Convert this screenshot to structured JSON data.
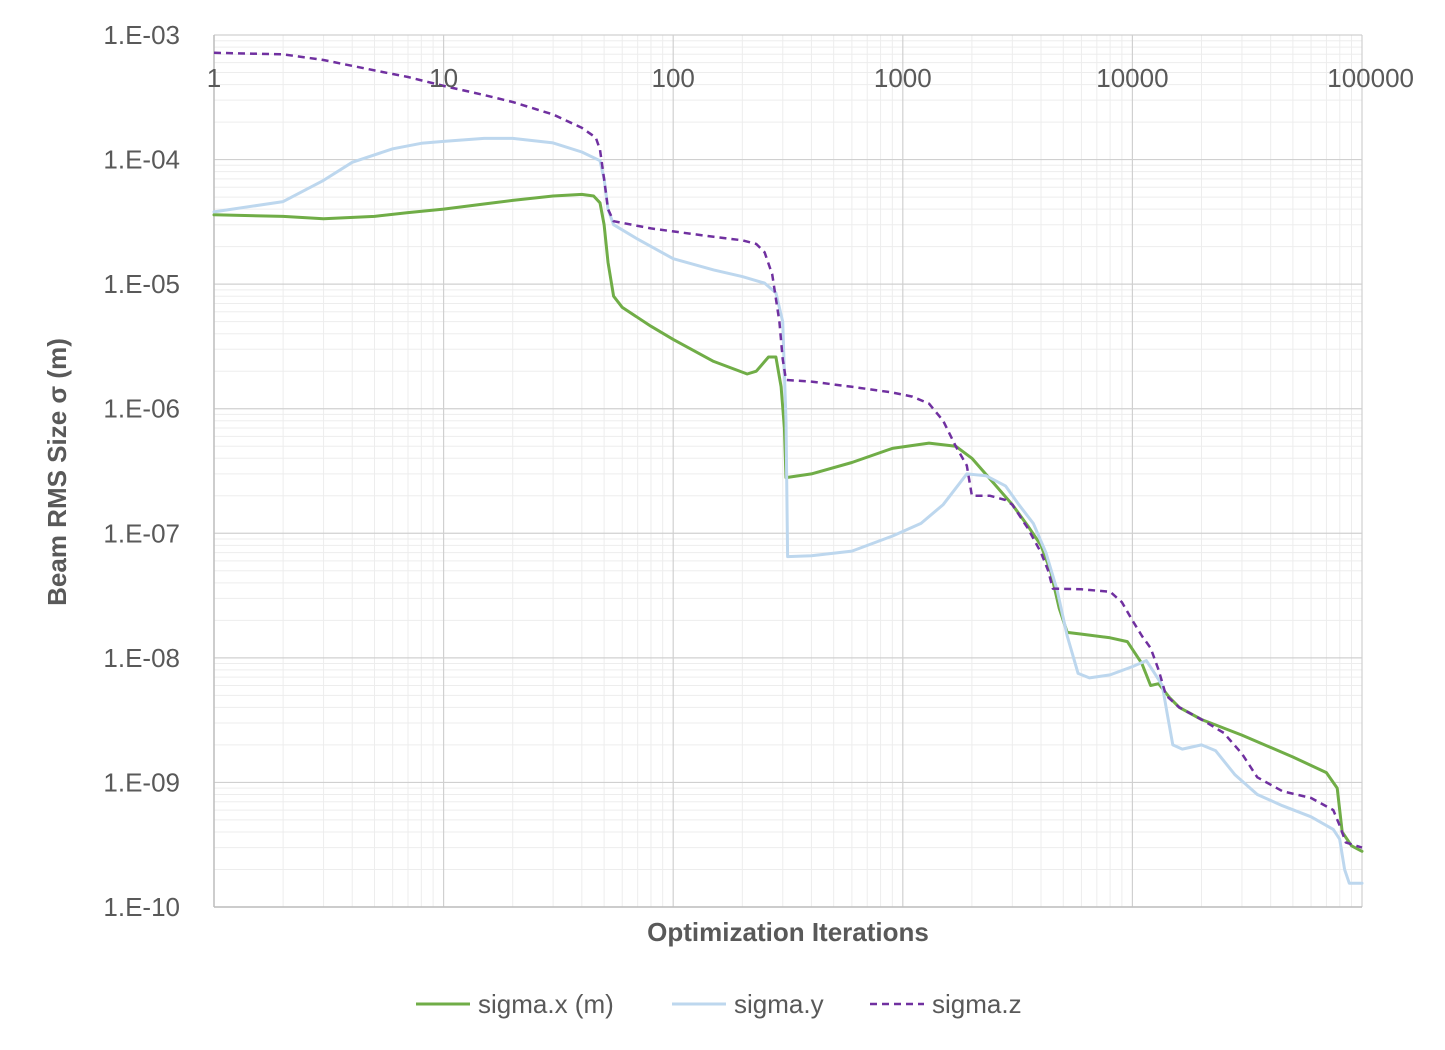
{
  "chart_data": {
    "type": "line",
    "title": "",
    "xlabel": "Optimization Iterations",
    "ylabel": "Beam RMS Size σ (m)",
    "x_scale": "log",
    "y_scale": "log",
    "xlim": [
      1,
      100000
    ],
    "ylim": [
      1e-10,
      0.001
    ],
    "x_ticks": [
      1,
      10,
      100,
      1000,
      10000,
      100000
    ],
    "x_tick_labels": [
      "1",
      "10",
      "100",
      "1000",
      "10000",
      "100000"
    ],
    "y_ticks": [
      0.001,
      0.0001,
      1e-05,
      1e-06,
      1e-07,
      1e-08,
      1e-09,
      1e-10
    ],
    "y_tick_labels": [
      "1.E-03",
      "1.E-04",
      "1.E-05",
      "1.E-06",
      "1.E-07",
      "1.E-08",
      "1.E-09",
      "1.E-10"
    ],
    "grid": true,
    "legend_position": "bottom",
    "series": [
      {
        "name": "sigma.x (m)",
        "color": "#70AD47",
        "dash": "solid",
        "points": [
          [
            1,
            3.6e-05
          ],
          [
            2,
            3.5e-05
          ],
          [
            3,
            3.35e-05
          ],
          [
            5,
            3.5e-05
          ],
          [
            7,
            3.75e-05
          ],
          [
            10,
            4e-05
          ],
          [
            15,
            4.4e-05
          ],
          [
            20,
            4.7e-05
          ],
          [
            30,
            5.1e-05
          ],
          [
            40,
            5.25e-05
          ],
          [
            45,
            5.1e-05
          ],
          [
            48,
            4.5e-05
          ],
          [
            50,
            3e-05
          ],
          [
            52,
            1.5e-05
          ],
          [
            55,
            8e-06
          ],
          [
            60,
            6.5e-06
          ],
          [
            80,
            4.6e-06
          ],
          [
            100,
            3.6e-06
          ],
          [
            150,
            2.4e-06
          ],
          [
            210,
            1.9e-06
          ],
          [
            230,
            2e-06
          ],
          [
            260,
            2.6e-06
          ],
          [
            280,
            2.6e-06
          ],
          [
            295,
            1.5e-06
          ],
          [
            305,
            7e-07
          ],
          [
            310,
            2.8e-07
          ],
          [
            400,
            3e-07
          ],
          [
            600,
            3.7e-07
          ],
          [
            900,
            4.8e-07
          ],
          [
            1300,
            5.3e-07
          ],
          [
            1700,
            5e-07
          ],
          [
            2000,
            4e-07
          ],
          [
            2500,
            2.5e-07
          ],
          [
            3000,
            1.7e-07
          ],
          [
            3500,
            1.15e-07
          ],
          [
            4000,
            8e-08
          ],
          [
            4400,
            5e-08
          ],
          [
            4800,
            2.5e-08
          ],
          [
            5200,
            1.6e-08
          ],
          [
            6000,
            1.55e-08
          ],
          [
            8000,
            1.45e-08
          ],
          [
            9500,
            1.35e-08
          ],
          [
            11000,
            9e-09
          ],
          [
            12000,
            6e-09
          ],
          [
            13000,
            6.2e-09
          ],
          [
            14500,
            4.8e-09
          ],
          [
            16000,
            4e-09
          ],
          [
            20000,
            3.2e-09
          ],
          [
            30000,
            2.4e-09
          ],
          [
            50000,
            1.6e-09
          ],
          [
            70000,
            1.2e-09
          ],
          [
            78000,
            9e-10
          ],
          [
            82000,
            4e-10
          ],
          [
            90000,
            3.1e-10
          ],
          [
            100000,
            2.8e-10
          ]
        ]
      },
      {
        "name": "sigma.y",
        "color": "#BDD7EE",
        "dash": "solid",
        "points": [
          [
            1,
            3.8e-05
          ],
          [
            2,
            4.6e-05
          ],
          [
            3,
            6.8e-05
          ],
          [
            4,
            9.5e-05
          ],
          [
            6,
            0.000122
          ],
          [
            8,
            0.000135
          ],
          [
            10,
            0.00014
          ],
          [
            15,
            0.000148
          ],
          [
            20,
            0.000148
          ],
          [
            30,
            0.000136
          ],
          [
            40,
            0.000115
          ],
          [
            48,
            9.8e-05
          ],
          [
            50,
            7e-05
          ],
          [
            52,
            4e-05
          ],
          [
            55,
            3e-05
          ],
          [
            70,
            2.3e-05
          ],
          [
            100,
            1.6e-05
          ],
          [
            150,
            1.3e-05
          ],
          [
            200,
            1.15e-05
          ],
          [
            250,
            1.02e-05
          ],
          [
            280,
            8.5e-06
          ],
          [
            300,
            5e-06
          ],
          [
            310,
            8e-07
          ],
          [
            315,
            6.5e-08
          ],
          [
            400,
            6.6e-08
          ],
          [
            600,
            7.2e-08
          ],
          [
            900,
            9.5e-08
          ],
          [
            1200,
            1.2e-07
          ],
          [
            1500,
            1.7e-07
          ],
          [
            1900,
            3e-07
          ],
          [
            2300,
            2.9e-07
          ],
          [
            2800,
            2.4e-07
          ],
          [
            3200,
            1.7e-07
          ],
          [
            3700,
            1.2e-07
          ],
          [
            4200,
            7e-08
          ],
          [
            4700,
            3.5e-08
          ],
          [
            5200,
            1.5e-08
          ],
          [
            5800,
            7.5e-09
          ],
          [
            6500,
            6.9e-09
          ],
          [
            8000,
            7.3e-09
          ],
          [
            10000,
            8.5e-09
          ],
          [
            11500,
            9.5e-09
          ],
          [
            12500,
            7.5e-09
          ],
          [
            13500,
            6e-09
          ],
          [
            14200,
            3.5e-09
          ],
          [
            15000,
            2e-09
          ],
          [
            16500,
            1.85e-09
          ],
          [
            20000,
            2e-09
          ],
          [
            23000,
            1.8e-09
          ],
          [
            28000,
            1.15e-09
          ],
          [
            35000,
            8e-10
          ],
          [
            45000,
            6.5e-10
          ],
          [
            60000,
            5.3e-10
          ],
          [
            75000,
            4.2e-10
          ],
          [
            80000,
            3.5e-10
          ],
          [
            84000,
            2e-10
          ],
          [
            88000,
            1.55e-10
          ],
          [
            100000,
            1.55e-10
          ]
        ]
      },
      {
        "name": "sigma.z",
        "color": "#7030A0",
        "dash": "dashed",
        "points": [
          [
            1,
            0.00072
          ],
          [
            2,
            0.0007
          ],
          [
            3,
            0.00063
          ],
          [
            5,
            0.00052
          ],
          [
            7,
            0.00046
          ],
          [
            10,
            0.00039
          ],
          [
            15,
            0.00033
          ],
          [
            20,
            0.00029
          ],
          [
            30,
            0.00023
          ],
          [
            40,
            0.00018
          ],
          [
            46,
            0.00015
          ],
          [
            48,
            0.00012
          ],
          [
            50,
            7e-05
          ],
          [
            52,
            4e-05
          ],
          [
            55,
            3.2e-05
          ],
          [
            80,
            2.8e-05
          ],
          [
            100,
            2.65e-05
          ],
          [
            150,
            2.4e-05
          ],
          [
            200,
            2.25e-05
          ],
          [
            230,
            2.1e-05
          ],
          [
            250,
            1.8e-05
          ],
          [
            270,
            1.2e-05
          ],
          [
            290,
            5e-06
          ],
          [
            300,
            2.5e-06
          ],
          [
            310,
            1.7e-06
          ],
          [
            400,
            1.65e-06
          ],
          [
            600,
            1.5e-06
          ],
          [
            900,
            1.35e-06
          ],
          [
            1100,
            1.25e-06
          ],
          [
            1300,
            1.1e-06
          ],
          [
            1500,
            8e-07
          ],
          [
            1700,
            5e-07
          ],
          [
            1900,
            3.5e-07
          ],
          [
            2000,
            2e-07
          ],
          [
            2400,
            2e-07
          ],
          [
            2800,
            1.85e-07
          ],
          [
            3000,
            1.7e-07
          ],
          [
            3500,
            1.1e-07
          ],
          [
            4000,
            7e-08
          ],
          [
            4300,
            5e-08
          ],
          [
            4500,
            3.6e-08
          ],
          [
            6000,
            3.55e-08
          ],
          [
            8000,
            3.4e-08
          ],
          [
            9000,
            2.8e-08
          ],
          [
            10000,
            2e-08
          ],
          [
            11000,
            1.5e-08
          ],
          [
            12000,
            1.2e-08
          ],
          [
            13000,
            8e-09
          ],
          [
            14000,
            5e-09
          ],
          [
            16000,
            4e-09
          ],
          [
            20000,
            3.2e-09
          ],
          [
            25000,
            2.5e-09
          ],
          [
            30000,
            1.7e-09
          ],
          [
            35000,
            1.1e-09
          ],
          [
            45000,
            8.5e-10
          ],
          [
            60000,
            7.5e-10
          ],
          [
            75000,
            6e-10
          ],
          [
            80000,
            4.5e-10
          ],
          [
            85000,
            3.3e-10
          ],
          [
            100000,
            3e-10
          ]
        ]
      }
    ]
  }
}
